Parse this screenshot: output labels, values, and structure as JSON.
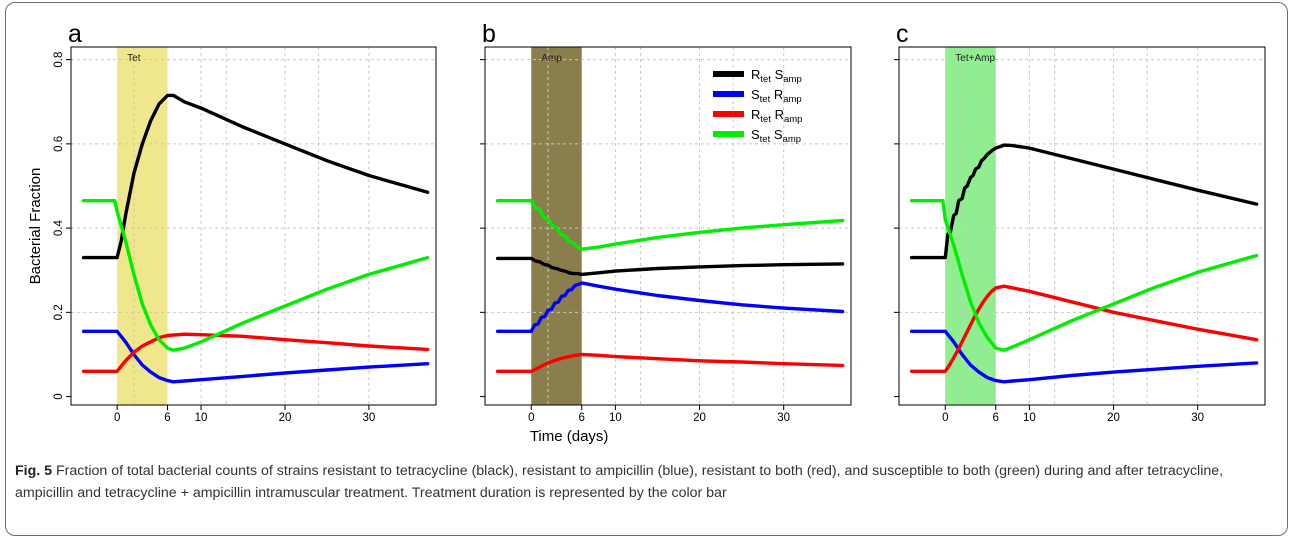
{
  "figure": {
    "caption_label": "Fig. 5",
    "caption_text": " Fraction of total bacterial counts of strains resistant to tetracycline (black), resistant to ampicillin (blue), resistant to both (red), and susceptible to both (green) during and after tetracycline, ampicillin and tetracycline + ampicillin intramuscular treatment. Treatment duration is represented by the color bar"
  },
  "colors": {
    "Rtet_Samp": "#000000",
    "Stet_Ramp": "#0000ff",
    "Rtet_Ramp": "#ff0000",
    "Stet_Samp": "#00ee00"
  },
  "legend": [
    {
      "key": "Rtet_Samp",
      "main1": "R",
      "sub1": "tet",
      "main2": " S",
      "sub2": "amp"
    },
    {
      "key": "Stet_Ramp",
      "main1": "S",
      "sub1": "tet",
      "main2": " R",
      "sub2": "amp"
    },
    {
      "key": "Rtet_Ramp",
      "main1": "R",
      "sub1": "tet",
      "main2": " R",
      "sub2": "amp"
    },
    {
      "key": "Stet_Samp",
      "main1": "S",
      "sub1": "tet",
      "main2": " S",
      "sub2": "amp"
    }
  ],
  "chart_data": [
    {
      "type": "line",
      "panel_label": "a",
      "treatment": {
        "label": "Tet",
        "start": 0,
        "end": 6,
        "color": "#f0e68c"
      },
      "xlabel": "",
      "ylabel": "Bacterial Fraction",
      "xlim": [
        -5.5,
        38
      ],
      "ylim": [
        -0.02,
        0.83
      ],
      "xticks": [
        0,
        6,
        10,
        20,
        30
      ],
      "yticks": [
        0,
        0.2,
        0.4,
        0.6,
        0.8
      ],
      "ytick_labels": [
        "0",
        "0.2",
        "0.4",
        "0.6",
        "0.8"
      ],
      "series": [
        {
          "key": "Rtet_Samp",
          "x": [
            -4,
            0,
            0.5,
            1,
            2,
            3,
            4,
            5,
            6,
            6.7,
            8,
            10,
            15,
            20,
            25,
            30,
            37
          ],
          "y": [
            0.33,
            0.33,
            0.37,
            0.43,
            0.53,
            0.6,
            0.655,
            0.695,
            0.715,
            0.715,
            0.7,
            0.685,
            0.64,
            0.6,
            0.56,
            0.525,
            0.485
          ]
        },
        {
          "key": "Stet_Ramp",
          "x": [
            -4,
            0,
            1,
            2,
            3,
            4,
            5,
            6,
            6.7,
            8,
            10,
            15,
            20,
            25,
            30,
            37
          ],
          "y": [
            0.155,
            0.155,
            0.13,
            0.1,
            0.075,
            0.058,
            0.045,
            0.038,
            0.035,
            0.037,
            0.04,
            0.048,
            0.056,
            0.063,
            0.07,
            0.078
          ]
        },
        {
          "key": "Rtet_Ramp",
          "x": [
            -4,
            0,
            1,
            2,
            3,
            4,
            5,
            6,
            8,
            10,
            15,
            20,
            25,
            30,
            37
          ],
          "y": [
            0.06,
            0.06,
            0.085,
            0.105,
            0.12,
            0.13,
            0.14,
            0.145,
            0.148,
            0.147,
            0.143,
            0.135,
            0.128,
            0.12,
            0.112
          ]
        },
        {
          "key": "Stet_Samp",
          "x": [
            -4,
            -0.3,
            0,
            1,
            2,
            3,
            4,
            5,
            6,
            6.7,
            8,
            10,
            15,
            20,
            25,
            30,
            37
          ],
          "y": [
            0.465,
            0.465,
            0.44,
            0.37,
            0.29,
            0.22,
            0.17,
            0.135,
            0.115,
            0.11,
            0.115,
            0.13,
            0.175,
            0.215,
            0.255,
            0.29,
            0.33
          ]
        }
      ]
    },
    {
      "type": "line",
      "panel_label": "b",
      "treatment": {
        "label": "Amp",
        "start": 0,
        "end": 6,
        "color": "#8a7f4c"
      },
      "xlabel": "Time (days)",
      "ylabel": "",
      "xlim": [
        -5.5,
        38
      ],
      "ylim": [
        -0.02,
        0.83
      ],
      "xticks": [
        0,
        6,
        10,
        20,
        30
      ],
      "yticks": [
        0,
        0.2,
        0.4,
        0.6,
        0.8
      ],
      "ytick_labels": [
        "",
        "",
        "",
        "",
        ""
      ],
      "series": [
        {
          "key": "Rtet_Samp",
          "x": [
            -4,
            0,
            0.5,
            1,
            1.5,
            2,
            2.5,
            3,
            3.5,
            4,
            4.5,
            5,
            5.5,
            6,
            8,
            10,
            15,
            20,
            25,
            30,
            37
          ],
          "y": [
            0.328,
            0.328,
            0.322,
            0.32,
            0.314,
            0.312,
            0.306,
            0.304,
            0.3,
            0.298,
            0.294,
            0.292,
            0.292,
            0.29,
            0.294,
            0.298,
            0.304,
            0.308,
            0.311,
            0.313,
            0.315
          ]
        },
        {
          "key": "Stet_Ramp",
          "x": [
            -4,
            0,
            0.4,
            0.8,
            1.2,
            1.6,
            2.0,
            2.4,
            2.8,
            3.2,
            3.6,
            4.0,
            4.4,
            4.8,
            5.2,
            5.6,
            6,
            8,
            10,
            15,
            20,
            25,
            30,
            37
          ],
          "y": [
            0.155,
            0.155,
            0.17,
            0.172,
            0.188,
            0.19,
            0.205,
            0.207,
            0.222,
            0.224,
            0.238,
            0.24,
            0.252,
            0.254,
            0.264,
            0.266,
            0.27,
            0.262,
            0.255,
            0.24,
            0.228,
            0.218,
            0.21,
            0.202
          ]
        },
        {
          "key": "Rtet_Ramp",
          "x": [
            -4,
            0,
            1,
            2,
            3,
            4,
            5,
            6,
            8,
            10,
            15,
            20,
            25,
            30,
            37
          ],
          "y": [
            0.06,
            0.06,
            0.07,
            0.08,
            0.087,
            0.093,
            0.097,
            0.1,
            0.098,
            0.095,
            0.09,
            0.085,
            0.082,
            0.078,
            0.074
          ]
        },
        {
          "key": "Stet_Samp",
          "x": [
            -4,
            0,
            0.5,
            1,
            1.5,
            2,
            2.5,
            3,
            3.5,
            4,
            4.5,
            5,
            5.5,
            6,
            8,
            10,
            15,
            20,
            25,
            30,
            37
          ],
          "y": [
            0.465,
            0.465,
            0.448,
            0.445,
            0.425,
            0.422,
            0.405,
            0.402,
            0.385,
            0.382,
            0.368,
            0.365,
            0.355,
            0.35,
            0.355,
            0.362,
            0.378,
            0.39,
            0.4,
            0.408,
            0.418
          ]
        }
      ]
    },
    {
      "type": "line",
      "panel_label": "c",
      "treatment": {
        "label": "Tet+Amp",
        "start": 0,
        "end": 6,
        "color": "#90ee90"
      },
      "xlabel": "",
      "ylabel": "",
      "xlim": [
        -5.5,
        38
      ],
      "ylim": [
        -0.02,
        0.83
      ],
      "xticks": [
        0,
        6,
        10,
        20,
        30
      ],
      "yticks": [
        0,
        0.2,
        0.4,
        0.6,
        0.8
      ],
      "ytick_labels": [
        "",
        "",
        "",
        "",
        ""
      ],
      "series": [
        {
          "key": "Rtet_Samp",
          "x": [
            -4,
            0,
            0.3,
            0.6,
            1,
            1.3,
            1.6,
            2,
            2.3,
            2.6,
            3,
            3.3,
            3.6,
            4,
            4.3,
            4.6,
            5,
            5.3,
            5.6,
            6,
            7,
            8,
            10,
            15,
            20,
            25,
            30,
            37
          ],
          "y": [
            0.33,
            0.33,
            0.385,
            0.39,
            0.43,
            0.435,
            0.465,
            0.47,
            0.495,
            0.5,
            0.52,
            0.525,
            0.54,
            0.545,
            0.56,
            0.565,
            0.575,
            0.58,
            0.585,
            0.59,
            0.597,
            0.596,
            0.59,
            0.565,
            0.54,
            0.515,
            0.49,
            0.457
          ]
        },
        {
          "key": "Stet_Ramp",
          "x": [
            -4,
            0,
            1,
            2,
            3,
            4,
            5,
            6,
            7,
            8,
            10,
            15,
            20,
            25,
            30,
            37
          ],
          "y": [
            0.155,
            0.155,
            0.13,
            0.1,
            0.075,
            0.058,
            0.045,
            0.038,
            0.035,
            0.037,
            0.04,
            0.05,
            0.058,
            0.065,
            0.072,
            0.08
          ]
        },
        {
          "key": "Rtet_Ramp",
          "x": [
            -4,
            0,
            0.5,
            1,
            1.5,
            2,
            2.5,
            3,
            3.5,
            4,
            4.5,
            5,
            5.5,
            6,
            7,
            8,
            10,
            15,
            20,
            25,
            30,
            37
          ],
          "y": [
            0.06,
            0.06,
            0.075,
            0.092,
            0.11,
            0.13,
            0.15,
            0.17,
            0.19,
            0.208,
            0.224,
            0.238,
            0.25,
            0.258,
            0.262,
            0.258,
            0.25,
            0.225,
            0.2,
            0.18,
            0.16,
            0.135
          ]
        },
        {
          "key": "Stet_Samp",
          "x": [
            -4,
            -0.3,
            0,
            1,
            2,
            3,
            4,
            5,
            6,
            7,
            8,
            10,
            15,
            20,
            25,
            30,
            37
          ],
          "y": [
            0.465,
            0.465,
            0.42,
            0.36,
            0.29,
            0.225,
            0.175,
            0.14,
            0.115,
            0.11,
            0.118,
            0.135,
            0.18,
            0.22,
            0.26,
            0.295,
            0.335
          ]
        }
      ]
    }
  ]
}
